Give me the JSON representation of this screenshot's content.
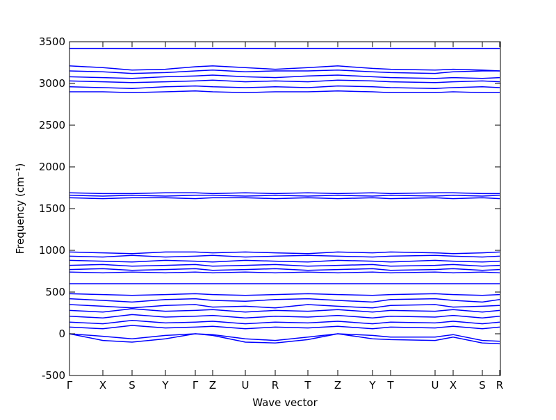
{
  "chart_data": {
    "type": "line",
    "xlabel": "Wave vector",
    "ylabel": "Frequency (cm⁻¹)",
    "x": [
      0,
      0.48,
      0.9,
      1.38,
      1.81,
      2.06,
      2.53,
      2.96,
      3.43,
      3.86,
      4.36,
      4.62,
      5.26,
      5.52,
      5.94,
      6.19
    ],
    "xlim": [
      0,
      6.2
    ],
    "xticks": [
      {
        "value": 0,
        "label": "Γ"
      },
      {
        "value": 0.48,
        "label": "X"
      },
      {
        "value": 0.9,
        "label": "S"
      },
      {
        "value": 1.38,
        "label": "Y"
      },
      {
        "value": 1.81,
        "label": "Γ"
      },
      {
        "value": 2.06,
        "label": "Z"
      },
      {
        "value": 2.53,
        "label": "U"
      },
      {
        "value": 2.96,
        "label": "R"
      },
      {
        "value": 3.43,
        "label": "T"
      },
      {
        "value": 3.86,
        "label": "Z"
      },
      {
        "value": 4.36,
        "label": "Y"
      },
      {
        "value": 4.62,
        "label": "T"
      },
      {
        "value": 5.26,
        "label": "U"
      },
      {
        "value": 5.52,
        "label": "X"
      },
      {
        "value": 5.94,
        "label": "S"
      },
      {
        "value": 6.19,
        "label": "R"
      }
    ],
    "ylim": [
      -500,
      3500
    ],
    "yticks": [
      -500,
      0,
      500,
      1000,
      1500,
      2000,
      2500,
      3000,
      3500
    ],
    "series": [
      {
        "color": "#0000ff",
        "values": [
          3420,
          3420,
          3420,
          3420,
          3420,
          3420,
          3420,
          3420,
          3420,
          3420,
          3420,
          3420,
          3420,
          3420,
          3420,
          3420
        ]
      },
      {
        "color": "#0000ff",
        "values": [
          3210,
          3190,
          3160,
          3170,
          3200,
          3210,
          3190,
          3170,
          3190,
          3210,
          3180,
          3170,
          3160,
          3170,
          3160,
          3150
        ]
      },
      {
        "color": "#0000ff",
        "values": [
          3150,
          3140,
          3120,
          3130,
          3150,
          3160,
          3140,
          3150,
          3150,
          3160,
          3140,
          3130,
          3120,
          3140,
          3150,
          3150
        ]
      },
      {
        "color": "#0000ff",
        "values": [
          3080,
          3070,
          3060,
          3080,
          3090,
          3100,
          3080,
          3070,
          3090,
          3100,
          3080,
          3070,
          3060,
          3070,
          3060,
          3070
        ]
      },
      {
        "color": "#0000ff",
        "values": [
          3030,
          3020,
          3010,
          3020,
          3030,
          3040,
          3020,
          3030,
          3020,
          3040,
          3030,
          3020,
          3010,
          3020,
          3030,
          3020
        ]
      },
      {
        "color": "#0000ff",
        "values": [
          2960,
          2950,
          2940,
          2960,
          2970,
          2960,
          2950,
          2960,
          2950,
          2970,
          2960,
          2950,
          2940,
          2950,
          2960,
          2950
        ]
      },
      {
        "color": "#0000ff",
        "values": [
          2900,
          2900,
          2890,
          2900,
          2910,
          2900,
          2890,
          2900,
          2900,
          2910,
          2900,
          2890,
          2890,
          2900,
          2890,
          2890
        ]
      },
      {
        "color": "#0000ff",
        "values": [
          1690,
          1680,
          1680,
          1690,
          1690,
          1680,
          1690,
          1680,
          1690,
          1680,
          1690,
          1680,
          1690,
          1690,
          1680,
          1680
        ]
      },
      {
        "color": "#0000ff",
        "values": [
          1660,
          1650,
          1660,
          1650,
          1660,
          1660,
          1650,
          1660,
          1650,
          1660,
          1650,
          1660,
          1650,
          1660,
          1650,
          1660
        ]
      },
      {
        "color": "#0000ff",
        "values": [
          1630,
          1620,
          1630,
          1630,
          1620,
          1630,
          1630,
          1620,
          1630,
          1620,
          1630,
          1620,
          1630,
          1620,
          1630,
          1620
        ]
      },
      {
        "color": "#0000ff",
        "values": [
          980,
          970,
          960,
          980,
          980,
          970,
          980,
          970,
          960,
          980,
          970,
          980,
          970,
          960,
          970,
          980
        ]
      },
      {
        "color": "#0000ff",
        "values": [
          930,
          920,
          940,
          920,
          930,
          940,
          920,
          930,
          940,
          930,
          920,
          930,
          940,
          930,
          920,
          930
        ]
      },
      {
        "color": "#0000ff",
        "values": [
          880,
          870,
          860,
          880,
          870,
          860,
          880,
          870,
          860,
          880,
          870,
          860,
          880,
          870,
          860,
          870
        ]
      },
      {
        "color": "#0000ff",
        "values": [
          820,
          830,
          810,
          820,
          830,
          810,
          820,
          830,
          810,
          820,
          830,
          810,
          820,
          830,
          810,
          820
        ]
      },
      {
        "color": "#0000ff",
        "values": [
          770,
          780,
          760,
          770,
          780,
          760,
          770,
          780,
          760,
          770,
          780,
          760,
          770,
          780,
          760,
          770
        ]
      },
      {
        "color": "#0000ff",
        "values": [
          740,
          730,
          740,
          730,
          740,
          730,
          740,
          730,
          740,
          730,
          740,
          730,
          740,
          730,
          740,
          730
        ]
      },
      {
        "color": "#0000ff",
        "values": [
          600,
          600,
          600,
          600,
          600,
          600,
          600,
          600,
          600,
          600,
          600,
          600,
          600,
          600,
          600,
          600
        ]
      },
      {
        "color": "#0000ff",
        "values": [
          480,
          470,
          460,
          470,
          480,
          470,
          460,
          470,
          480,
          470,
          460,
          470,
          480,
          470,
          460,
          470
        ]
      },
      {
        "color": "#0000ff",
        "values": [
          420,
          400,
          380,
          410,
          420,
          400,
          390,
          410,
          420,
          400,
          380,
          410,
          420,
          400,
          380,
          410
        ]
      },
      {
        "color": "#0000ff",
        "values": [
          350,
          330,
          310,
          340,
          350,
          320,
          330,
          310,
          350,
          330,
          310,
          340,
          350,
          320,
          330,
          340
        ]
      },
      {
        "color": "#0000ff",
        "values": [
          280,
          260,
          300,
          270,
          280,
          290,
          260,
          280,
          270,
          290,
          260,
          280,
          270,
          290,
          260,
          280
        ]
      },
      {
        "color": "#0000ff",
        "values": [
          210,
          190,
          230,
          200,
          210,
          220,
          190,
          210,
          200,
          220,
          190,
          210,
          200,
          220,
          190,
          210
        ]
      },
      {
        "color": "#0000ff",
        "values": [
          140,
          120,
          160,
          130,
          140,
          150,
          120,
          140,
          130,
          150,
          120,
          140,
          130,
          150,
          120,
          140
        ]
      },
      {
        "color": "#0000ff",
        "values": [
          80,
          60,
          100,
          70,
          80,
          90,
          60,
          80,
          70,
          90,
          60,
          80,
          70,
          90,
          60,
          80
        ]
      },
      {
        "color": "#0000ff",
        "values": [
          0,
          -80,
          -100,
          -60,
          0,
          -20,
          -100,
          -110,
          -70,
          0,
          -60,
          -70,
          -80,
          -40,
          -110,
          -120
        ]
      },
      {
        "color": "#0000ff",
        "values": [
          0,
          -30,
          -60,
          -20,
          0,
          -10,
          -60,
          -80,
          -40,
          0,
          -20,
          -40,
          -40,
          -10,
          -80,
          -90
        ]
      }
    ]
  }
}
